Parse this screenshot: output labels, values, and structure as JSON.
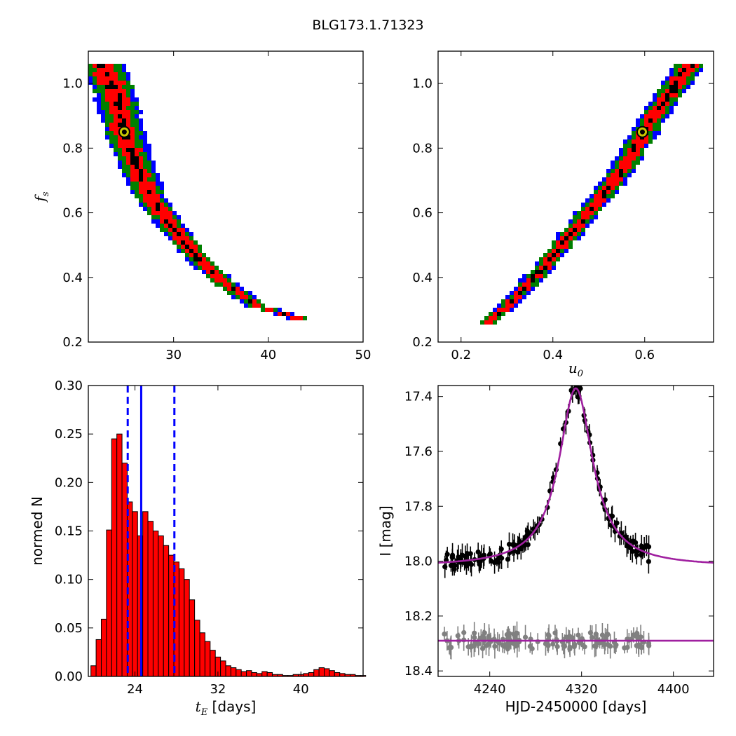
{
  "figure": {
    "title": "BLG173.1.71323"
  },
  "chart_data": [
    {
      "panel": "top-left",
      "type": "heatmap",
      "title": "",
      "xlabel": "",
      "ylabel": "f_s",
      "xlim": [
        21,
        50
      ],
      "ylim": [
        0.2,
        1.1
      ],
      "x_ticks": [
        30,
        40,
        50
      ],
      "y_ticks": [
        0.2,
        0.4,
        0.6,
        0.8,
        1.0
      ],
      "x_tick_labels": [
        "30",
        "40",
        "50"
      ],
      "y_tick_labels": [
        "0.2",
        "0.4",
        "0.6",
        "0.8",
        "1.0"
      ],
      "level_colors": {
        "outer": "#0000ff",
        "mid": "#008000",
        "inner": "#ff0000",
        "core": "#000000"
      },
      "ridge": [
        [
          22.5,
          1.06
        ],
        [
          23.5,
          1.0
        ],
        [
          24.0,
          0.95
        ],
        [
          24.8,
          0.85
        ],
        [
          26.0,
          0.75
        ],
        [
          27.5,
          0.65
        ],
        [
          30.0,
          0.55
        ],
        [
          32.5,
          0.46
        ],
        [
          35.5,
          0.38
        ],
        [
          39.0,
          0.31
        ],
        [
          43.5,
          0.27
        ]
      ],
      "best_fit": {
        "x": 24.8,
        "y": 0.85
      }
    },
    {
      "panel": "top-right",
      "type": "heatmap",
      "title": "",
      "xlabel": "u_0",
      "ylabel": "",
      "xlim": [
        0.15,
        0.75
      ],
      "ylim": [
        0.2,
        1.1
      ],
      "x_ticks": [
        0.2,
        0.4,
        0.6
      ],
      "y_ticks": [
        0.2,
        0.4,
        0.6,
        0.8,
        1.0
      ],
      "x_tick_labels": [
        "0.2",
        "0.4",
        "0.6"
      ],
      "y_tick_labels": [
        "0.2",
        "0.4",
        "0.6",
        "0.8",
        "1.0"
      ],
      "level_colors": {
        "outer": "#0000ff",
        "mid": "#008000",
        "inner": "#ff0000",
        "core": "#000000"
      },
      "ridge": [
        [
          0.26,
          0.265
        ],
        [
          0.3,
          0.31
        ],
        [
          0.34,
          0.37
        ],
        [
          0.38,
          0.43
        ],
        [
          0.42,
          0.5
        ],
        [
          0.46,
          0.57
        ],
        [
          0.5,
          0.64
        ],
        [
          0.54,
          0.71
        ],
        [
          0.58,
          0.8
        ],
        [
          0.62,
          0.9
        ],
        [
          0.66,
          0.98
        ],
        [
          0.7,
          1.06
        ]
      ],
      "best_fit": {
        "x": 0.595,
        "y": 0.85
      }
    },
    {
      "panel": "bottom-left",
      "type": "bar",
      "title": "",
      "xlabel": "t_E [days]",
      "ylabel": "normed N",
      "xlim": [
        19.5,
        46
      ],
      "ylim": [
        0,
        0.3
      ],
      "x_ticks": [
        24,
        32,
        40
      ],
      "y_ticks": [
        0.0,
        0.05,
        0.1,
        0.15,
        0.2,
        0.25,
        0.3
      ],
      "x_tick_labels": [
        "24",
        "32",
        "40"
      ],
      "y_tick_labels": [
        "0.00",
        "0.05",
        "0.10",
        "0.15",
        "0.20",
        "0.25",
        "0.30"
      ],
      "bin_start": 19.75,
      "bin_width": 0.5,
      "values": [
        0.011,
        0.038,
        0.059,
        0.151,
        0.245,
        0.25,
        0.22,
        0.18,
        0.17,
        0.145,
        0.17,
        0.16,
        0.15,
        0.145,
        0.135,
        0.125,
        0.118,
        0.111,
        0.1,
        0.079,
        0.058,
        0.045,
        0.036,
        0.027,
        0.02,
        0.016,
        0.011,
        0.009,
        0.007,
        0.005,
        0.006,
        0.004,
        0.003,
        0.005,
        0.004,
        0.002,
        0.002,
        0.001,
        0.001,
        0.002,
        0.002,
        0.003,
        0.004,
        0.007,
        0.009,
        0.008,
        0.006,
        0.004,
        0.003,
        0.002,
        0.002,
        0.001,
        0.001
      ],
      "bar_color": "#ff0000",
      "lines": {
        "median": 24.6,
        "lower": 23.3,
        "upper": 27.8,
        "color": "#0000ff"
      }
    },
    {
      "panel": "bottom-right",
      "type": "scatter",
      "title": "",
      "xlabel": "HJD-2450000 [days]",
      "ylabel": "I [mag]",
      "xlim": [
        4195,
        4435
      ],
      "ylim": [
        18.42,
        17.36
      ],
      "x_ticks": [
        4240,
        4320,
        4400
      ],
      "y_ticks": [
        17.4,
        17.6,
        17.8,
        18.0,
        18.2,
        18.4
      ],
      "x_tick_labels": [
        "4240",
        "4320",
        "4400"
      ],
      "y_tick_labels": [
        "17.4",
        "17.6",
        "17.8",
        "18.0",
        "18.2",
        "18.4"
      ],
      "model": {
        "t0": 4315,
        "peak_mag": 17.37,
        "baseline_mag": 18.02,
        "width": 18,
        "color": "#a020a0"
      },
      "residual_level": 18.29,
      "series": [
        {
          "kind": "data",
          "color": "#000000",
          "n_points": 130,
          "x_range": [
            4200,
            4380
          ],
          "err": 0.03
        },
        {
          "kind": "residuals",
          "color": "#808080",
          "n_points": 130,
          "x_range": [
            4200,
            4380
          ],
          "err": 0.03
        }
      ]
    }
  ]
}
